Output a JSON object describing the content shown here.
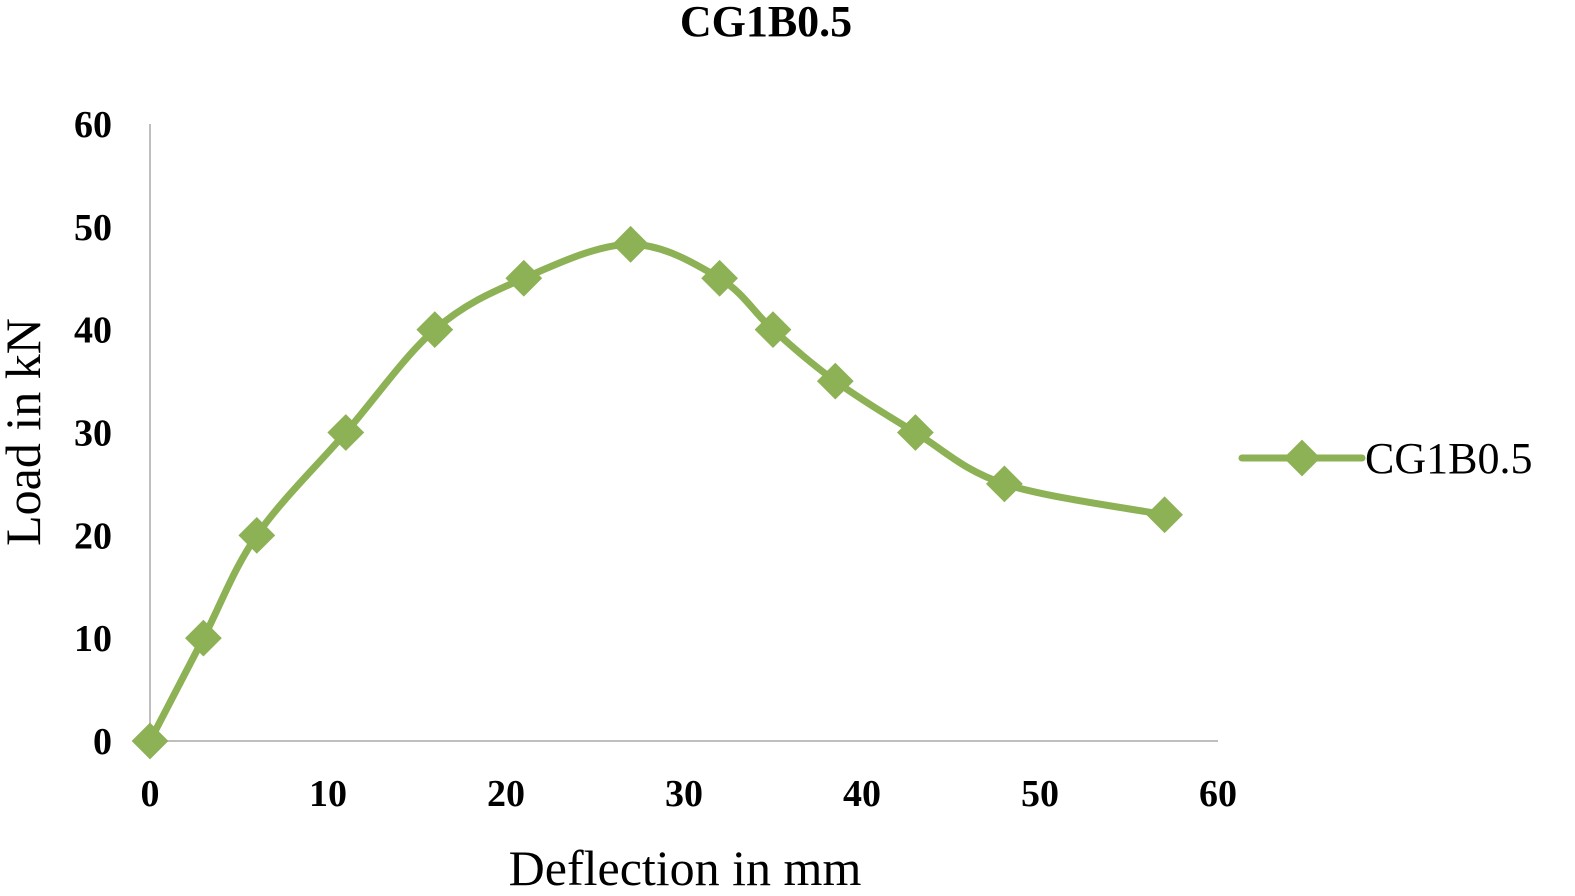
{
  "chart_data": {
    "type": "line",
    "title": "CG1B0.5",
    "xlabel": "Deflection in mm",
    "ylabel": "Load in kN",
    "xlim": [
      0,
      60
    ],
    "ylim": [
      0,
      60
    ],
    "xticks": [
      0,
      10,
      20,
      30,
      40,
      50,
      60
    ],
    "yticks": [
      0,
      10,
      20,
      30,
      40,
      50,
      60
    ],
    "xtick_labels": [
      "0",
      "10",
      "20",
      "30",
      "40",
      "50",
      "60"
    ],
    "ytick_labels": [
      "0",
      "10",
      "20",
      "30",
      "40",
      "50",
      "60"
    ],
    "grid": false,
    "smooth": true,
    "marker": "diamond",
    "legend": "right",
    "series": [
      {
        "name": "CG1B0.5",
        "color": "#8db155",
        "x": [
          0,
          3,
          6,
          11,
          16,
          21,
          27,
          32,
          35,
          38.5,
          43,
          48,
          57
        ],
        "y": [
          0,
          10,
          20,
          30,
          40,
          45,
          48.3,
          45,
          40,
          35,
          30,
          25,
          22
        ]
      }
    ],
    "axis_color": "#bfbfbf"
  }
}
